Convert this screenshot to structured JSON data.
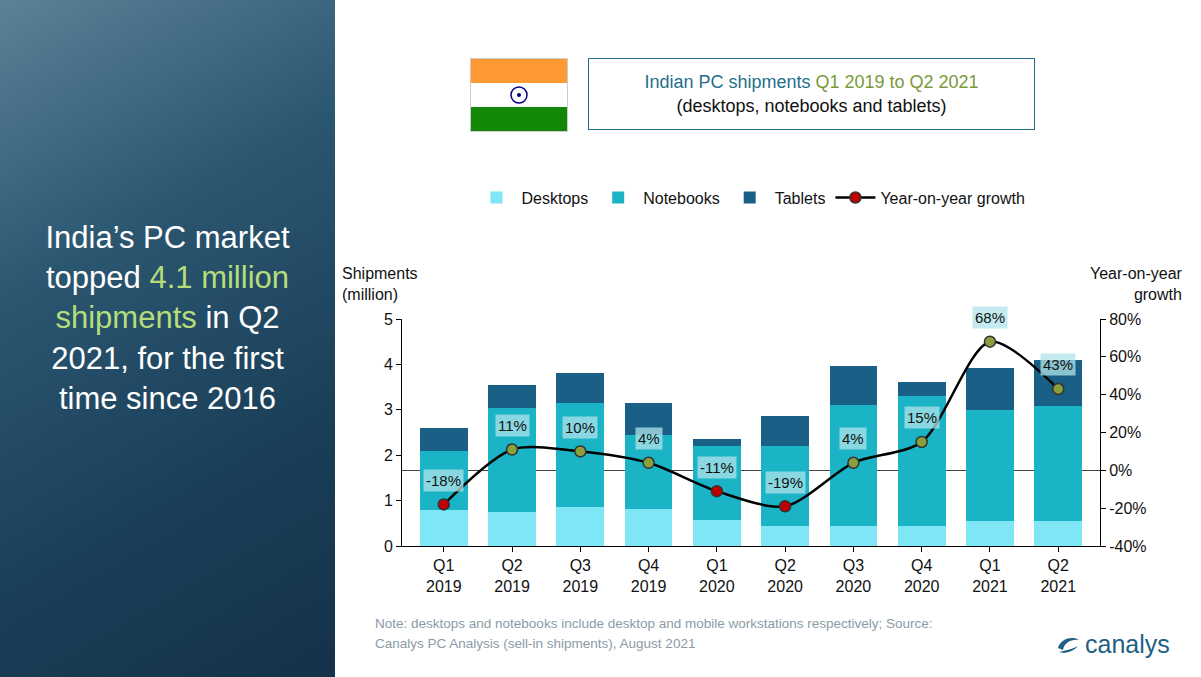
{
  "left_panel": {
    "text_before": "India’s PC market topped ",
    "highlight": "4.1 million shipments",
    "text_after": " in Q2 2021, for the first time since 2016"
  },
  "header": {
    "title": "Indian PC shipments ",
    "title_highlight": "Q1 2019 to Q2 2021",
    "subtitle": "(desktops, notebooks and tablets)"
  },
  "chart_data": {
    "type": "bar",
    "stacked": true,
    "categories": [
      "Q1 2019",
      "Q2 2019",
      "Q3 2019",
      "Q4 2019",
      "Q1 2020",
      "Q2 2020",
      "Q3 2020",
      "Q4 2020",
      "Q1 2021",
      "Q2 2021"
    ],
    "series": [
      {
        "name": "Desktops",
        "type": "bar",
        "color": "#7fe6f5",
        "values": [
          0.8,
          0.75,
          0.87,
          0.82,
          0.57,
          0.45,
          0.45,
          0.45,
          0.55,
          0.55
        ]
      },
      {
        "name": "Notebooks",
        "type": "bar",
        "color": "#1bb3c6",
        "values": [
          1.3,
          2.3,
          2.28,
          1.63,
          1.63,
          1.75,
          2.65,
          2.85,
          2.45,
          2.53
        ]
      },
      {
        "name": "Tablets",
        "type": "bar",
        "color": "#1a5f85",
        "values": [
          0.5,
          0.5,
          0.67,
          0.7,
          0.15,
          0.67,
          0.87,
          0.32,
          0.93,
          1.02
        ]
      },
      {
        "name": "Year-on-year growth",
        "type": "line",
        "axis": "y2",
        "color": "#000000",
        "marker": "circle",
        "data_labels": true,
        "colors": [
          "#c00000",
          "#8aa03c",
          "#8aa03c",
          "#8aa03c",
          "#c00000",
          "#c00000",
          "#8aa03c",
          "#8aa03c",
          "#8aa03c",
          "#8aa03c"
        ],
        "values": [
          -18,
          11,
          10,
          4,
          -11,
          -19,
          4,
          15,
          68,
          43
        ],
        "value_labels": [
          "-18%",
          "11%",
          "10%",
          "4%",
          "-11%",
          "-19%",
          "4%",
          "15%",
          "68%",
          "43%"
        ]
      }
    ],
    "ylabel": [
      "Shipments",
      "(million)"
    ],
    "y2label": [
      "Year-on-year",
      "growth"
    ],
    "ylim": [
      0,
      5
    ],
    "yticks": [
      0,
      1,
      2,
      3,
      4,
      5
    ],
    "y2lim": [
      -40,
      80
    ],
    "y2ticks": [
      {
        "value": -40,
        "label": "-40%"
      },
      {
        "value": -20,
        "label": "-20%"
      },
      {
        "value": 0,
        "label": "0%"
      },
      {
        "value": 20,
        "label": "20%"
      },
      {
        "value": 40,
        "label": "40%"
      },
      {
        "value": 60,
        "label": "60%"
      },
      {
        "value": 80,
        "label": "80%"
      }
    ],
    "grid": false,
    "legend": "top"
  },
  "footer": {
    "note": "Note: desktops and notebooks include desktop and mobile workstations respectively; Source: Canalys PC Analysis (sell-in shipments), August 2021",
    "logo": "canalys"
  }
}
